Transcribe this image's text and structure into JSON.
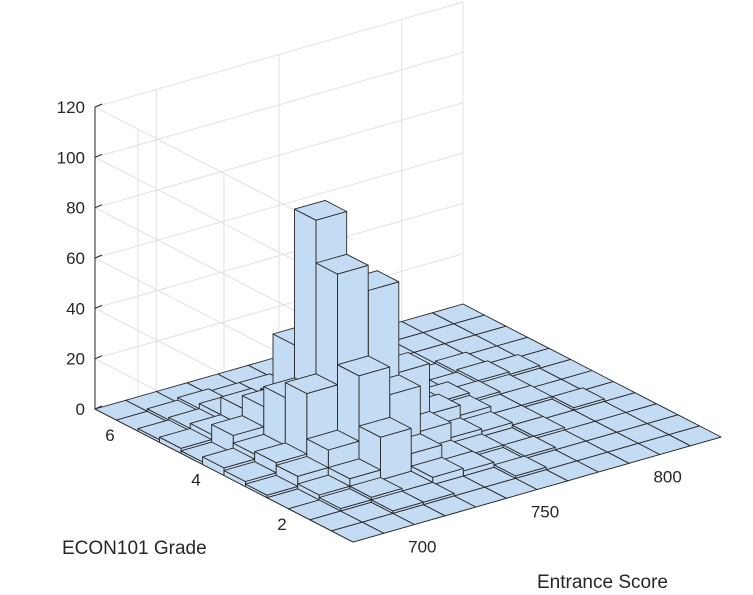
{
  "chart_data": {
    "type": "histogram3d",
    "title": "",
    "xlabel": "Entrance Score",
    "ylabel": "ECON101 Grade",
    "zlabel": "",
    "x_ticks": [
      "700",
      "750",
      "800"
    ],
    "y_ticks": [
      "2",
      "4",
      "6"
    ],
    "z_ticks": [
      "0",
      "20",
      "40",
      "60",
      "80",
      "100",
      "120"
    ],
    "x_edges": [
      675,
      687.5,
      700,
      712.5,
      725,
      737.5,
      750,
      762.5,
      775,
      787.5,
      800,
      812.5,
      825
    ],
    "y_edges": [
      1,
      1.5,
      2,
      2.5,
      3,
      3.5,
      4,
      4.5,
      5,
      5.5,
      6,
      6.5,
      7
    ],
    "zlim": [
      0,
      120
    ],
    "grid": true,
    "bar_color": "#c4dcf3",
    "counts": [
      [
        0,
        0,
        0,
        0,
        0,
        0,
        0,
        0,
        0,
        0,
        0,
        0
      ],
      [
        0,
        0,
        1,
        1,
        0,
        0,
        1,
        0,
        0,
        0,
        0,
        0
      ],
      [
        0,
        1,
        2,
        1,
        3,
        2,
        0,
        1,
        0,
        0,
        0,
        0
      ],
      [
        0,
        2,
        5,
        18,
        8,
        2,
        1,
        0,
        1,
        0,
        0,
        0
      ],
      [
        1,
        5,
        12,
        38,
        27,
        9,
        3,
        2,
        1,
        0,
        1,
        0
      ],
      [
        2,
        6,
        30,
        74,
        64,
        28,
        8,
        4,
        1,
        1,
        0,
        0
      ],
      [
        3,
        5,
        24,
        91,
        56,
        22,
        7,
        5,
        2,
        1,
        0,
        0
      ],
      [
        1,
        8,
        16,
        37,
        35,
        12,
        5,
        2,
        1,
        2,
        1,
        0
      ],
      [
        2,
        4,
        11,
        8,
        2,
        3,
        1,
        2,
        0,
        1,
        0,
        0
      ],
      [
        1,
        2,
        4,
        2,
        3,
        1,
        2,
        1,
        0,
        0,
        0,
        0
      ],
      [
        0,
        1,
        2,
        1,
        1,
        0,
        1,
        0,
        0,
        0,
        0,
        0
      ],
      [
        0,
        0,
        0,
        0,
        0,
        0,
        0,
        0,
        0,
        0,
        0,
        0
      ]
    ]
  }
}
